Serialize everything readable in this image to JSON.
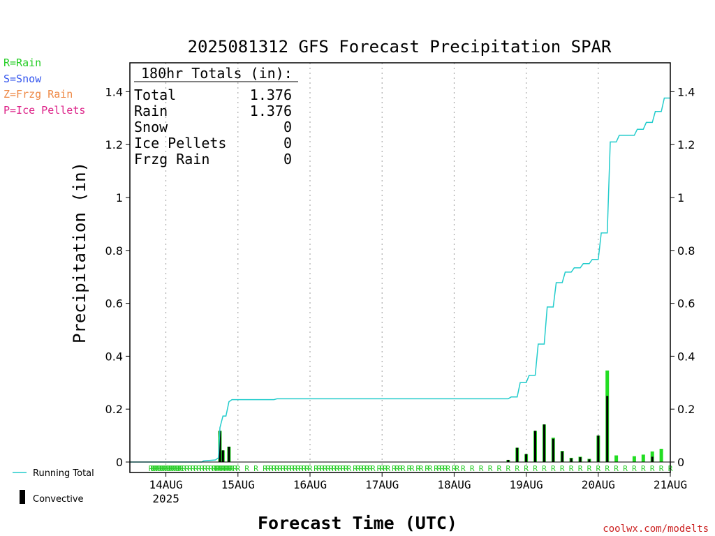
{
  "chart_data": {
    "type": "bar",
    "title": "2025081312 GFS Forecast Precipitation SPAR",
    "xlabel": "Forecast Time (UTC)",
    "ylabel": "Precipitation (in)",
    "ylim": [
      0,
      1.52
    ],
    "yticks": [
      "0",
      "0.2",
      "0.4",
      "0.6",
      "0.8",
      "1",
      "1.2",
      "1.4"
    ],
    "xlim_hours": [
      0,
      180
    ],
    "day_ticks": [
      {
        "label": "14AUG",
        "hour": 12,
        "sub": "2025"
      },
      {
        "label": "15AUG",
        "hour": 36,
        "sub": ""
      },
      {
        "label": "16AUG",
        "hour": 60,
        "sub": ""
      },
      {
        "label": "17AUG",
        "hour": 84,
        "sub": ""
      },
      {
        "label": "18AUG",
        "hour": 108,
        "sub": ""
      },
      {
        "label": "19AUG",
        "hour": 132,
        "sub": ""
      },
      {
        "label": "20AUG",
        "hour": 156,
        "sub": ""
      },
      {
        "label": "21AUG",
        "hour": 180,
        "sub": ""
      }
    ],
    "grid": "vertical dotted lines at day boundaries",
    "totals_box": {
      "heading": "180hr Totals (in):",
      "rows": [
        {
          "label": "Total",
          "value": "1.376"
        },
        {
          "label": "Rain",
          "value": "1.376"
        },
        {
          "label": "Snow",
          "value": "0"
        },
        {
          "label": "Ice Pellets",
          "value": "0"
        },
        {
          "label": "Frzg Rain",
          "value": "0"
        }
      ]
    },
    "type_legend": [
      {
        "label": "R=Rain",
        "color": "#22cc22"
      },
      {
        "label": "S=Snow",
        "color": "#3355ee"
      },
      {
        "label": "Z=Frzg Rain",
        "color": "#ee8844"
      },
      {
        "label": "P=Ice Pellets",
        "color": "#dd2288"
      }
    ],
    "series_legend": [
      {
        "label": "Running Total",
        "color": "#22cccc"
      },
      {
        "label": "Convective",
        "color": "#000000"
      }
    ],
    "running_total": {
      "name": "Running Total",
      "color": "#22cccc",
      "points": [
        [
          0,
          0.0
        ],
        [
          24,
          0.0
        ],
        [
          24.5,
          0.004
        ],
        [
          28.5,
          0.008
        ],
        [
          29.5,
          0.016
        ],
        [
          30,
          0.13
        ],
        [
          31,
          0.174
        ],
        [
          32,
          0.174
        ],
        [
          33,
          0.228
        ],
        [
          34,
          0.236
        ],
        [
          48,
          0.236
        ],
        [
          49,
          0.239
        ],
        [
          126,
          0.239
        ],
        [
          127,
          0.246
        ],
        [
          129,
          0.246
        ],
        [
          130,
          0.3
        ],
        [
          132,
          0.3
        ],
        [
          133,
          0.328
        ],
        [
          135,
          0.328
        ],
        [
          136,
          0.446
        ],
        [
          138,
          0.446
        ],
        [
          139,
          0.586
        ],
        [
          141,
          0.586
        ],
        [
          142,
          0.678
        ],
        [
          144,
          0.678
        ],
        [
          145,
          0.718
        ],
        [
          147,
          0.718
        ],
        [
          148,
          0.734
        ],
        [
          150,
          0.734
        ],
        [
          151,
          0.75
        ],
        [
          153,
          0.75
        ],
        [
          154,
          0.766
        ],
        [
          156,
          0.766
        ],
        [
          157,
          0.866
        ],
        [
          159,
          0.866
        ],
        [
          160,
          1.21
        ],
        [
          162,
          1.21
        ],
        [
          163,
          1.235
        ],
        [
          168,
          1.235
        ],
        [
          169,
          1.258
        ],
        [
          171,
          1.258
        ],
        [
          172,
          1.284
        ],
        [
          174,
          1.284
        ],
        [
          175,
          1.325
        ],
        [
          177,
          1.325
        ],
        [
          178,
          1.376
        ],
        [
          180,
          1.376
        ]
      ]
    },
    "bars": [
      {
        "hour": 30,
        "total": 0.118,
        "convective": 0.118
      },
      {
        "hour": 31,
        "total": 0.044,
        "convective": 0.044
      },
      {
        "hour": 33,
        "total": 0.058,
        "convective": 0.058
      },
      {
        "hour": 126,
        "total": 0.008,
        "convective": 0.008
      },
      {
        "hour": 129,
        "total": 0.054,
        "convective": 0.054
      },
      {
        "hour": 132,
        "total": 0.03,
        "convective": 0.03
      },
      {
        "hour": 135,
        "total": 0.118,
        "convective": 0.118
      },
      {
        "hour": 138,
        "total": 0.142,
        "convective": 0.142
      },
      {
        "hour": 141,
        "total": 0.092,
        "convective": 0.088
      },
      {
        "hour": 144,
        "total": 0.042,
        "convective": 0.04
      },
      {
        "hour": 147,
        "total": 0.016,
        "convective": 0.014
      },
      {
        "hour": 150,
        "total": 0.02,
        "convective": 0.018
      },
      {
        "hour": 153,
        "total": 0.012,
        "convective": 0.01
      },
      {
        "hour": 156,
        "total": 0.1,
        "convective": 0.1
      },
      {
        "hour": 159,
        "total": 0.346,
        "convective": 0.25
      },
      {
        "hour": 162,
        "total": 0.025,
        "convective": 0.0
      },
      {
        "hour": 168,
        "total": 0.022,
        "convective": 0.0
      },
      {
        "hour": 171,
        "total": 0.028,
        "convective": 0.0
      },
      {
        "hour": 174,
        "total": 0.04,
        "convective": 0.02
      },
      {
        "hour": 177,
        "total": 0.05,
        "convective": 0.0
      }
    ],
    "type_markers": {
      "hours": [
        7,
        7.6,
        8.2,
        8.8,
        9.4,
        10,
        10.6,
        11.2,
        11.8,
        12.4,
        13,
        13.6,
        14.2,
        14.8,
        15.4,
        16,
        16.6,
        17.2,
        18,
        19,
        20,
        21,
        22,
        23,
        24,
        25,
        26,
        27,
        28,
        28.5,
        29,
        29.5,
        30,
        30.5,
        31,
        31.5,
        32,
        32.5,
        33,
        33.5,
        34,
        35,
        36,
        39,
        42,
        45,
        46,
        47,
        48,
        49,
        50,
        51,
        52,
        53,
        54,
        55,
        56,
        57,
        58,
        59,
        60,
        62,
        63,
        64,
        65,
        66,
        67,
        68,
        69,
        70,
        71,
        72,
        73,
        75,
        76,
        77,
        78,
        79,
        80,
        81,
        83,
        84,
        85,
        86,
        88,
        89,
        90,
        91,
        93,
        94,
        96,
        97,
        99,
        100,
        102,
        103,
        104,
        105,
        106,
        108,
        109,
        111,
        114,
        117,
        120,
        123,
        126,
        129,
        132,
        135,
        138,
        141,
        144,
        147,
        150,
        153,
        156,
        159,
        162,
        165,
        168,
        171,
        174,
        177,
        180
      ],
      "symbol": "R"
    }
  }
}
